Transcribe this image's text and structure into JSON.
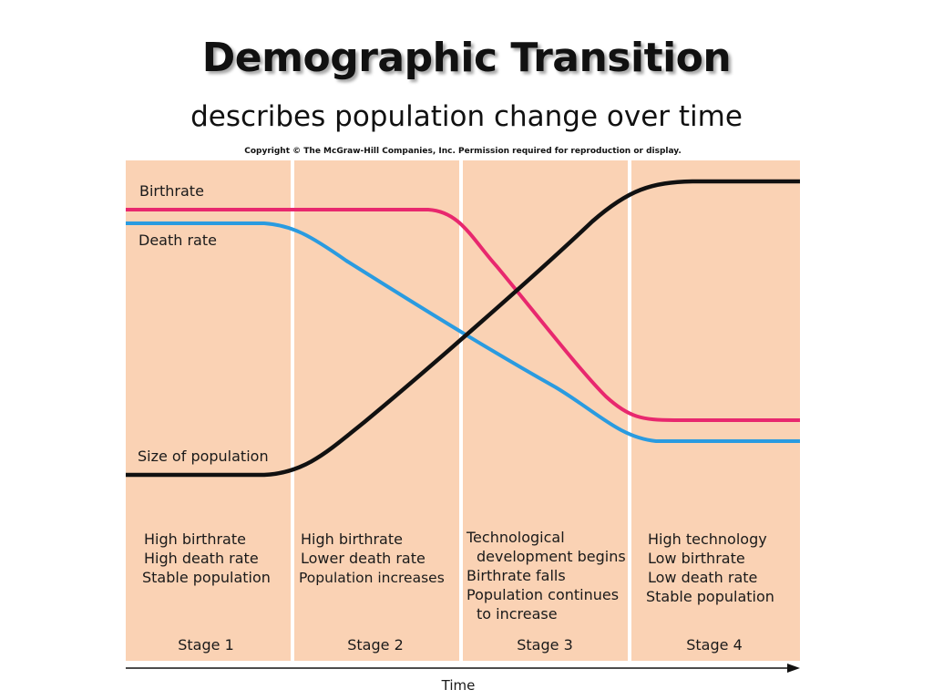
{
  "title": "Demographic Transition",
  "subtitle": "describes population change over time",
  "copyright": "Copyright © The McGraw-Hill Companies, Inc. Permission required for reproduction or display.",
  "colors": {
    "background": "#FAD2B4",
    "divider": "#FFFFFF",
    "birthrate": "#E8286E",
    "death_rate": "#2A9BE0",
    "population": "#111111"
  },
  "curves": {
    "birthrate": "Birthrate",
    "death_rate": "Death rate",
    "population": "Size of population"
  },
  "stages": [
    {
      "label": "Stage 1",
      "lines": [
        "High birthrate",
        "High death  rate",
        "Stable population"
      ]
    },
    {
      "label": "Stage 2",
      "lines": [
        "High birthrate",
        "Lower death rate",
        "Population increases"
      ]
    },
    {
      "label": "Stage 3",
      "lines": [
        "Technological",
        "development begins",
        "Birthrate falls",
        "Population continues",
        "to increase"
      ]
    },
    {
      "label": "Stage 4",
      "lines": [
        "High technology",
        "Low birthrate",
        "Low death rate",
        "Stable population"
      ]
    }
  ],
  "axis_label": "Time"
}
